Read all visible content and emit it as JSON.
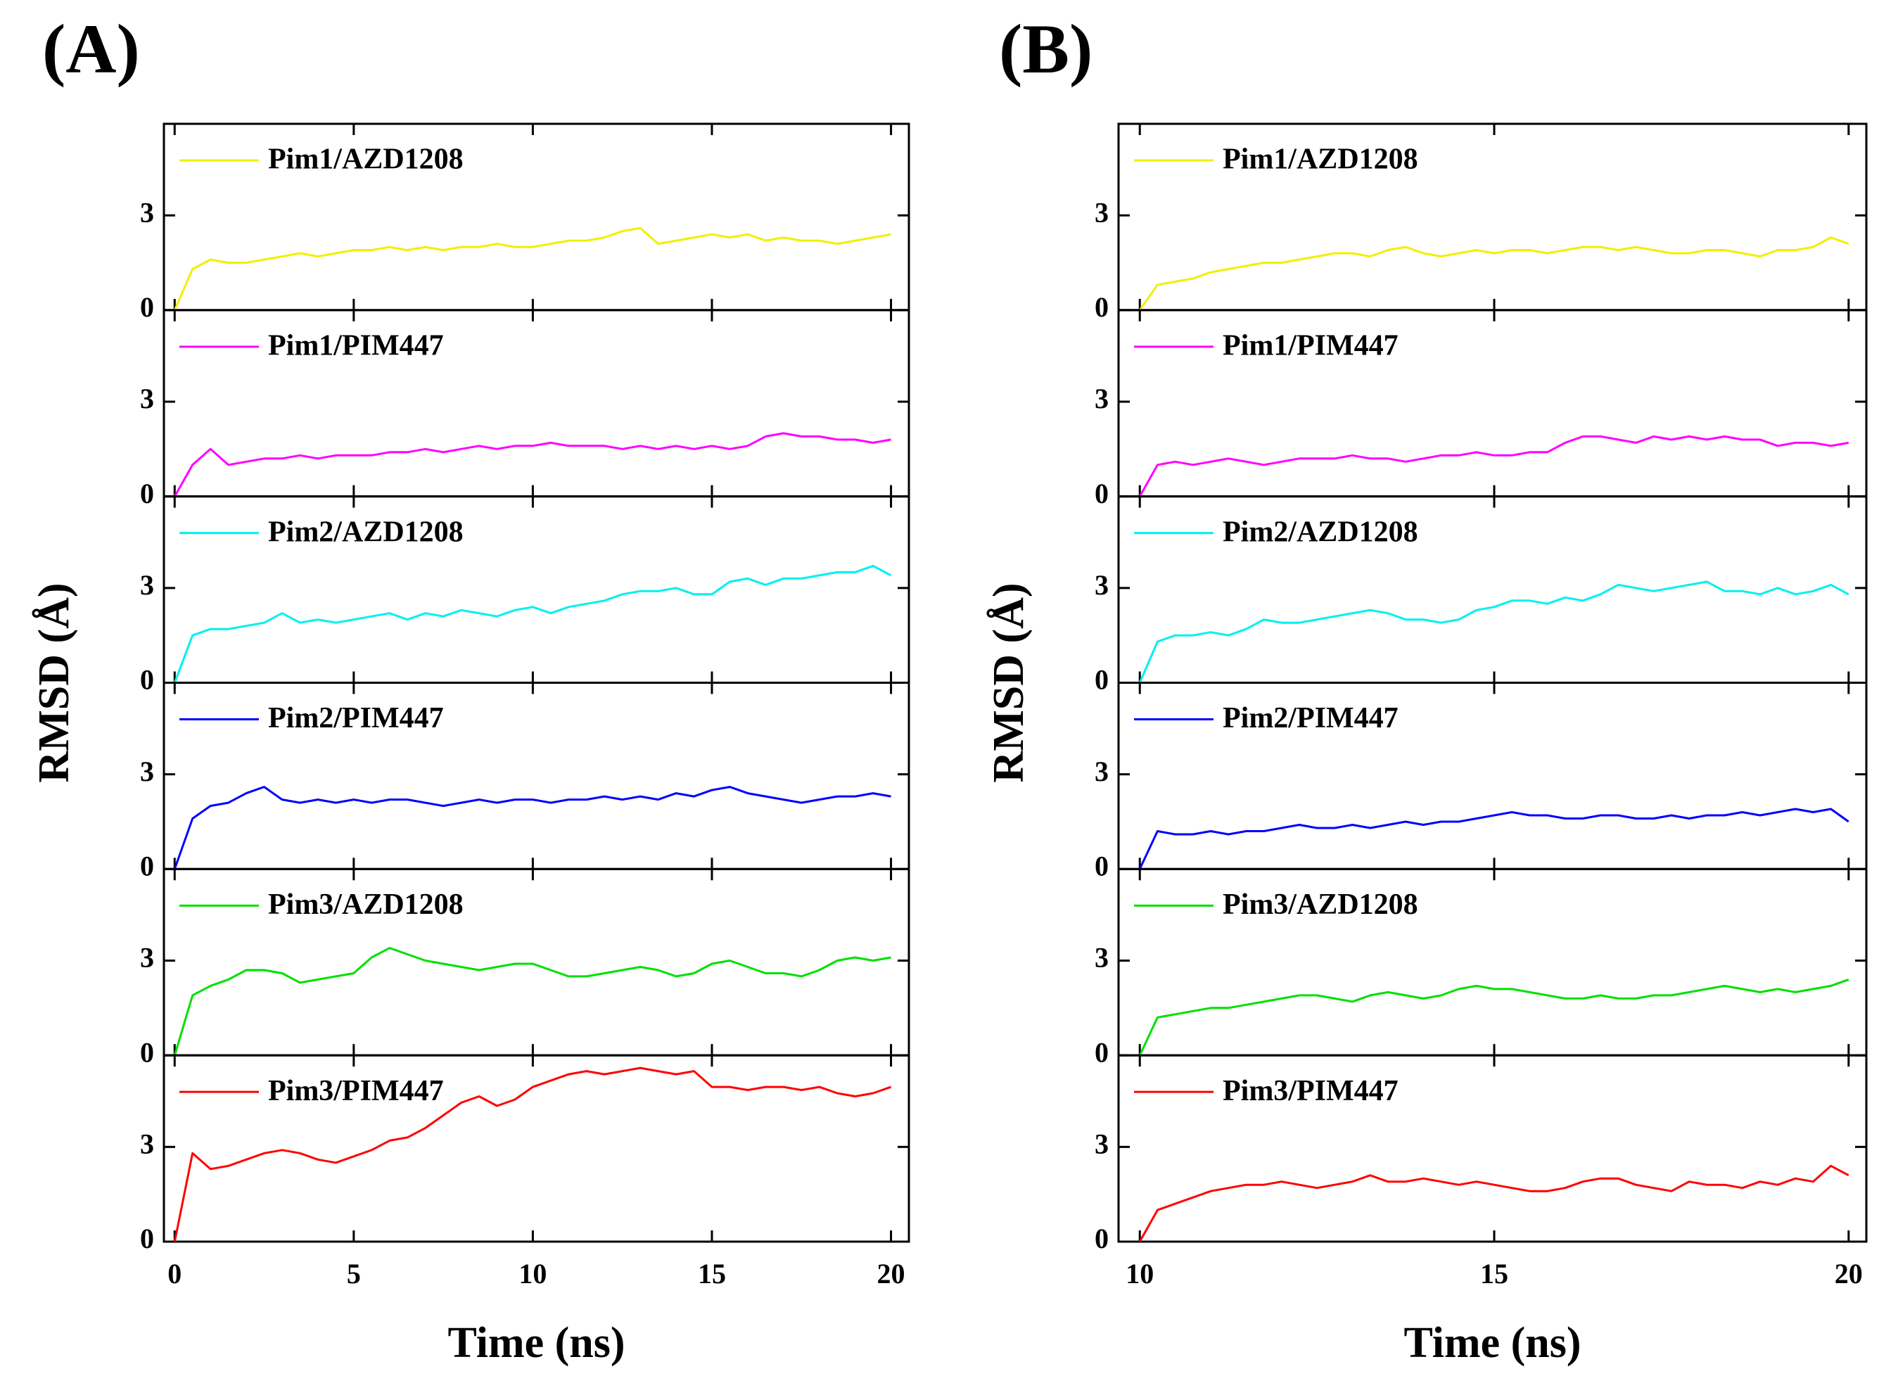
{
  "chart_data": [
    {
      "type": "line",
      "panel_label": "(A)",
      "xlabel": "Time (ns)",
      "ylabel": "RMSD (Å)",
      "xlim": [
        -0.3,
        20.5
      ],
      "xticks": [
        0,
        5,
        10,
        15,
        20
      ],
      "ylim": [
        0,
        5.9
      ],
      "yticks": [
        0,
        3
      ],
      "x": [
        0,
        0.5,
        1,
        1.5,
        2,
        2.5,
        3,
        3.5,
        4,
        4.5,
        5,
        5.5,
        6,
        6.5,
        7,
        7.5,
        8,
        8.5,
        9,
        9.5,
        10,
        10.5,
        11,
        11.5,
        12,
        12.5,
        13,
        13.5,
        14,
        14.5,
        15,
        15.5,
        16,
        16.5,
        17,
        17.5,
        18,
        18.5,
        19,
        19.5,
        20
      ],
      "series": [
        {
          "name": "Pim1/AZD1208",
          "color": "#f0f000",
          "values": [
            0,
            1.3,
            1.6,
            1.5,
            1.5,
            1.6,
            1.7,
            1.8,
            1.7,
            1.8,
            1.9,
            1.9,
            2.0,
            1.9,
            2.0,
            1.9,
            2.0,
            2.0,
            2.1,
            2.0,
            2.0,
            2.1,
            2.2,
            2.2,
            2.3,
            2.5,
            2.6,
            2.1,
            2.2,
            2.3,
            2.4,
            2.3,
            2.4,
            2.2,
            2.3,
            2.2,
            2.2,
            2.1,
            2.2,
            2.3,
            2.4
          ]
        },
        {
          "name": "Pim1/PIM447",
          "color": "#ff00ff",
          "values": [
            0,
            1.0,
            1.5,
            1.0,
            1.1,
            1.2,
            1.2,
            1.3,
            1.2,
            1.3,
            1.3,
            1.3,
            1.4,
            1.4,
            1.5,
            1.4,
            1.5,
            1.6,
            1.5,
            1.6,
            1.6,
            1.7,
            1.6,
            1.6,
            1.6,
            1.5,
            1.6,
            1.5,
            1.6,
            1.5,
            1.6,
            1.5,
            1.6,
            1.9,
            2.0,
            1.9,
            1.9,
            1.8,
            1.8,
            1.7,
            1.8
          ]
        },
        {
          "name": "Pim2/AZD1208",
          "color": "#00f0f0",
          "values": [
            0,
            1.5,
            1.7,
            1.7,
            1.8,
            1.9,
            2.2,
            1.9,
            2.0,
            1.9,
            2.0,
            2.1,
            2.2,
            2.0,
            2.2,
            2.1,
            2.3,
            2.2,
            2.1,
            2.3,
            2.4,
            2.2,
            2.4,
            2.5,
            2.6,
            2.8,
            2.9,
            2.9,
            3.0,
            2.8,
            2.8,
            3.2,
            3.3,
            3.1,
            3.3,
            3.3,
            3.4,
            3.5,
            3.5,
            3.7,
            3.4
          ]
        },
        {
          "name": "Pim2/PIM447",
          "color": "#0000ff",
          "values": [
            0,
            1.6,
            2.0,
            2.1,
            2.4,
            2.6,
            2.2,
            2.1,
            2.2,
            2.1,
            2.2,
            2.1,
            2.2,
            2.2,
            2.1,
            2.0,
            2.1,
            2.2,
            2.1,
            2.2,
            2.2,
            2.1,
            2.2,
            2.2,
            2.3,
            2.2,
            2.3,
            2.2,
            2.4,
            2.3,
            2.5,
            2.6,
            2.4,
            2.3,
            2.2,
            2.1,
            2.2,
            2.3,
            2.3,
            2.4,
            2.3
          ]
        },
        {
          "name": "Pim3/AZD1208",
          "color": "#00e000",
          "values": [
            0,
            1.9,
            2.2,
            2.4,
            2.7,
            2.7,
            2.6,
            2.3,
            2.4,
            2.5,
            2.6,
            3.1,
            3.4,
            3.2,
            3.0,
            2.9,
            2.8,
            2.7,
            2.8,
            2.9,
            2.9,
            2.7,
            2.5,
            2.5,
            2.6,
            2.7,
            2.8,
            2.7,
            2.5,
            2.6,
            2.9,
            3.0,
            2.8,
            2.6,
            2.6,
            2.5,
            2.7,
            3.0,
            3.1,
            3.0,
            3.1
          ]
        },
        {
          "name": "Pim3/PIM447",
          "color": "#ff0000",
          "values": [
            0,
            2.8,
            2.3,
            2.4,
            2.6,
            2.8,
            2.9,
            2.8,
            2.6,
            2.5,
            2.7,
            2.9,
            3.2,
            3.3,
            3.6,
            4.0,
            4.4,
            4.6,
            4.3,
            4.5,
            4.9,
            5.1,
            5.3,
            5.4,
            5.3,
            5.4,
            5.5,
            5.4,
            5.3,
            5.4,
            4.9,
            4.9,
            4.8,
            4.9,
            4.9,
            4.8,
            4.9,
            4.7,
            4.6,
            4.7,
            4.9
          ]
        }
      ]
    },
    {
      "type": "line",
      "panel_label": "(B)",
      "xlabel": "Time (ns)",
      "ylabel": "RMSD (Å)",
      "xlim": [
        9.7,
        20.25
      ],
      "xticks": [
        10,
        15,
        20
      ],
      "ylim": [
        0,
        5.9
      ],
      "yticks": [
        0,
        3
      ],
      "x": [
        10,
        10.25,
        10.5,
        10.75,
        11,
        11.25,
        11.5,
        11.75,
        12,
        12.25,
        12.5,
        12.75,
        13,
        13.25,
        13.5,
        13.75,
        14,
        14.25,
        14.5,
        14.75,
        15,
        15.25,
        15.5,
        15.75,
        16,
        16.25,
        16.5,
        16.75,
        17,
        17.25,
        17.5,
        17.75,
        18,
        18.25,
        18.5,
        18.75,
        19,
        19.25,
        19.5,
        19.75,
        20
      ],
      "series": [
        {
          "name": "Pim1/AZD1208",
          "color": "#f0f000",
          "values": [
            0,
            0.8,
            0.9,
            1.0,
            1.2,
            1.3,
            1.4,
            1.5,
            1.5,
            1.6,
            1.7,
            1.8,
            1.8,
            1.7,
            1.9,
            2.0,
            1.8,
            1.7,
            1.8,
            1.9,
            1.8,
            1.9,
            1.9,
            1.8,
            1.9,
            2.0,
            2.0,
            1.9,
            2.0,
            1.9,
            1.8,
            1.8,
            1.9,
            1.9,
            1.8,
            1.7,
            1.9,
            1.9,
            2.0,
            2.3,
            2.1
          ]
        },
        {
          "name": "Pim1/PIM447",
          "color": "#ff00ff",
          "values": [
            0,
            1.0,
            1.1,
            1.0,
            1.1,
            1.2,
            1.1,
            1.0,
            1.1,
            1.2,
            1.2,
            1.2,
            1.3,
            1.2,
            1.2,
            1.1,
            1.2,
            1.3,
            1.3,
            1.4,
            1.3,
            1.3,
            1.4,
            1.4,
            1.7,
            1.9,
            1.9,
            1.8,
            1.7,
            1.9,
            1.8,
            1.9,
            1.8,
            1.9,
            1.8,
            1.8,
            1.6,
            1.7,
            1.7,
            1.6,
            1.7
          ]
        },
        {
          "name": "Pim2/AZD1208",
          "color": "#00f0f0",
          "values": [
            0,
            1.3,
            1.5,
            1.5,
            1.6,
            1.5,
            1.7,
            2.0,
            1.9,
            1.9,
            2.0,
            2.1,
            2.2,
            2.3,
            2.2,
            2.0,
            2.0,
            1.9,
            2.0,
            2.3,
            2.4,
            2.6,
            2.6,
            2.5,
            2.7,
            2.6,
            2.8,
            3.1,
            3.0,
            2.9,
            3.0,
            3.1,
            3.2,
            2.9,
            2.9,
            2.8,
            3.0,
            2.8,
            2.9,
            3.1,
            2.8
          ]
        },
        {
          "name": "Pim2/PIM447",
          "color": "#0000ff",
          "values": [
            0,
            1.2,
            1.1,
            1.1,
            1.2,
            1.1,
            1.2,
            1.2,
            1.3,
            1.4,
            1.3,
            1.3,
            1.4,
            1.3,
            1.4,
            1.5,
            1.4,
            1.5,
            1.5,
            1.6,
            1.7,
            1.8,
            1.7,
            1.7,
            1.6,
            1.6,
            1.7,
            1.7,
            1.6,
            1.6,
            1.7,
            1.6,
            1.7,
            1.7,
            1.8,
            1.7,
            1.8,
            1.9,
            1.8,
            1.9,
            1.5
          ]
        },
        {
          "name": "Pim3/AZD1208",
          "color": "#00e000",
          "values": [
            0,
            1.2,
            1.3,
            1.4,
            1.5,
            1.5,
            1.6,
            1.7,
            1.8,
            1.9,
            1.9,
            1.8,
            1.7,
            1.9,
            2.0,
            1.9,
            1.8,
            1.9,
            2.1,
            2.2,
            2.1,
            2.1,
            2.0,
            1.9,
            1.8,
            1.8,
            1.9,
            1.8,
            1.8,
            1.9,
            1.9,
            2.0,
            2.1,
            2.2,
            2.1,
            2.0,
            2.1,
            2.0,
            2.1,
            2.2,
            2.4
          ]
        },
        {
          "name": "Pim3/PIM447",
          "color": "#ff0000",
          "values": [
            0,
            1.0,
            1.2,
            1.4,
            1.6,
            1.7,
            1.8,
            1.8,
            1.9,
            1.8,
            1.7,
            1.8,
            1.9,
            2.1,
            1.9,
            1.9,
            2.0,
            1.9,
            1.8,
            1.9,
            1.8,
            1.7,
            1.6,
            1.6,
            1.7,
            1.9,
            2.0,
            2.0,
            1.8,
            1.7,
            1.6,
            1.9,
            1.8,
            1.8,
            1.7,
            1.9,
            1.8,
            2.0,
            1.9,
            2.4,
            2.1
          ]
        }
      ]
    }
  ]
}
